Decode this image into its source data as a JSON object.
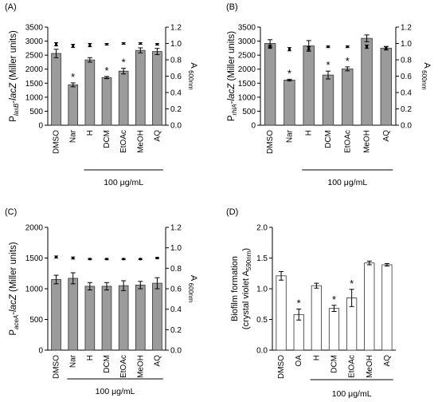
{
  "chart_data": [
    {
      "panel_label": "(A)",
      "type": "bar",
      "categories": [
        "DMSO",
        "Nar",
        "H",
        "DCM",
        "EtOAc",
        "MeOH",
        "AQ"
      ],
      "values": [
        2560,
        1440,
        2330,
        1700,
        1930,
        2670,
        2630
      ],
      "errors": [
        150,
        70,
        80,
        40,
        100,
        90,
        110
      ],
      "significant": [
        false,
        true,
        false,
        true,
        true,
        false,
        false
      ],
      "ylim": [
        0,
        3500
      ],
      "yticks": [
        0,
        500,
        1000,
        1500,
        2000,
        2500,
        3000,
        3500
      ],
      "ylabel_prefix": "P",
      "ylabel_sub": "lasB",
      "ylabel_suffix": "-lacZ (Miller units)",
      "right_axis": {
        "label": "A",
        "label_sub": "600nm",
        "ylim": [
          0,
          1.2
        ],
        "yticks": [
          "0.0",
          "0.2",
          "0.4",
          "0.6",
          "0.8",
          "1.0",
          "1.2"
        ],
        "values": [
          0.99,
          0.97,
          0.98,
          0.99,
          1.0,
          1.0,
          0.99
        ],
        "errors": [
          0.02,
          0.02,
          0.02,
          0.01,
          0.01,
          0.01,
          0.01
        ]
      },
      "bracket_label": "100 μg/mL",
      "bracket_span": [
        "H",
        "AQ"
      ]
    },
    {
      "panel_label": "(B)",
      "type": "bar",
      "categories": [
        "DMSO",
        "Nar",
        "H",
        "DCM",
        "EtOAc",
        "MeOH",
        "AQ"
      ],
      "values": [
        2920,
        1610,
        2830,
        1790,
        2010,
        3100,
        2750
      ],
      "errors": [
        130,
        30,
        190,
        140,
        70,
        120,
        60
      ],
      "significant": [
        false,
        true,
        false,
        true,
        true,
        false,
        false
      ],
      "ylim": [
        0,
        3500
      ],
      "yticks": [
        0,
        500,
        1000,
        1500,
        2000,
        2500,
        3000,
        3500
      ],
      "ylabel_prefix": "P",
      "ylabel_sub": "rhlA",
      "ylabel_suffix": "-lacZ (Miller units)",
      "right_axis": {
        "label": "A",
        "label_sub": "600nm",
        "ylim": [
          0,
          1.2
        ],
        "yticks": [
          "0.0",
          "0.2",
          "0.4",
          "0.6",
          "0.8",
          "1.0",
          "1.2"
        ],
        "values": [
          0.96,
          0.93,
          0.94,
          0.96,
          0.96,
          0.96,
          0.94
        ],
        "errors": [
          0.02,
          0.02,
          0.02,
          0.01,
          0.01,
          0.02,
          0.02
        ]
      },
      "bracket_label": "100 μg/mL",
      "bracket_span": [
        "H",
        "AQ"
      ]
    },
    {
      "panel_label": "(C)",
      "type": "bar",
      "categories": [
        "DMSO",
        "Nar",
        "H",
        "DCM",
        "EtOAc",
        "MeOH",
        "AQ"
      ],
      "values": [
        1150,
        1170,
        1040,
        1040,
        1050,
        1060,
        1090
      ],
      "errors": [
        70,
        90,
        60,
        60,
        80,
        60,
        90
      ],
      "significant": [
        false,
        false,
        false,
        false,
        false,
        false,
        false
      ],
      "ylim": [
        0,
        2000
      ],
      "yticks": [
        0,
        500,
        1000,
        1500,
        2000
      ],
      "ylabel_prefix": "P",
      "ylabel_sub": "aceA",
      "ylabel_suffix": "-lacZ (Miller units)",
      "right_axis": {
        "label": "A",
        "label_sub": "600nm",
        "ylim": [
          0,
          1.2
        ],
        "yticks": [
          "0.0",
          "0.2",
          "0.4",
          "0.6",
          "0.8",
          "1.0",
          "1.2"
        ],
        "values": [
          0.91,
          0.9,
          0.89,
          0.89,
          0.89,
          0.89,
          0.9
        ],
        "errors": [
          0.01,
          0.01,
          0.005,
          0.005,
          0.005,
          0.005,
          0.005
        ]
      },
      "bracket_label": "100 μg/mL",
      "bracket_span": [
        "Nar",
        "AQ"
      ]
    },
    {
      "panel_label": "(D)",
      "type": "bar",
      "categories": [
        "DMSO",
        "OA",
        "H",
        "DCM",
        "EtOAc",
        "MeOH",
        "AQ"
      ],
      "values": [
        1.21,
        0.58,
        1.05,
        0.68,
        0.85,
        1.42,
        1.39
      ],
      "errors": [
        0.07,
        0.09,
        0.04,
        0.05,
        0.14,
        0.03,
        0.02
      ],
      "significant": [
        false,
        true,
        false,
        true,
        true,
        false,
        false
      ],
      "ylim": [
        0,
        2.0
      ],
      "yticks": [
        "0.0",
        "0.5",
        "1.0",
        "1.5",
        "2.0"
      ],
      "ylabel_line1": "Biofilm formation",
      "ylabel_line2": "(crystal violet A",
      "ylabel_line2_sub": "590nm",
      "ylabel_line2_end": ")",
      "bracket_label": "100 μg/mL",
      "bracket_span": [
        "H",
        "AQ"
      ]
    }
  ]
}
